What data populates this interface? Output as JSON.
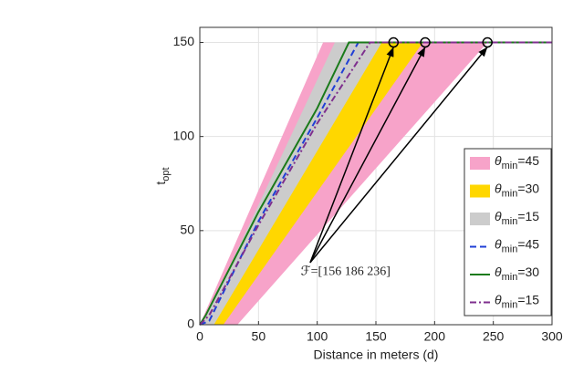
{
  "chart_data": {
    "type": "line",
    "xlabel": "Distance in meters (d)",
    "ylabel": "topt",
    "xlim": [
      0,
      300
    ],
    "ylim": [
      0,
      158
    ],
    "xticks": [
      0,
      50,
      100,
      150,
      200,
      250,
      300
    ],
    "yticks": [
      0,
      50,
      100,
      150
    ],
    "grid": true,
    "legend": "lower-right",
    "areas": [
      {
        "name": "θmin=45",
        "color": "#f7a3c9",
        "x": [
          0,
          105,
          245,
          32
        ],
        "y": [
          0,
          150,
          150,
          0
        ]
      },
      {
        "name": "θmin=30",
        "color": "#ffd700",
        "x": [
          5,
          120,
          190,
          20
        ],
        "y": [
          0,
          150,
          150,
          0
        ]
      },
      {
        "name": "θmin=15",
        "color": "#cccccc",
        "x": [
          2,
          115,
          155,
          12
        ],
        "y": [
          0,
          150,
          150,
          0
        ]
      }
    ],
    "series": [
      {
        "name": "θmin=45",
        "color": "#1f3fd6",
        "dash": "7,4",
        "x": [
          0,
          8,
          50,
          100,
          135,
          300
        ],
        "values": [
          0,
          2,
          55,
          110,
          150,
          150
        ]
      },
      {
        "name": "θmin=30",
        "color": "#1a7a1a",
        "dash": "none",
        "x": [
          0,
          5,
          50,
          100,
          127,
          300
        ],
        "values": [
          0,
          5,
          60,
          115,
          150,
          150
        ]
      },
      {
        "name": "θmin=15",
        "color": "#7e2f8e",
        "dash": "7,3,2,3",
        "x": [
          0,
          8,
          50,
          100,
          145,
          300
        ],
        "values": [
          0,
          5,
          53,
          107,
          150,
          150
        ]
      }
    ],
    "markers": {
      "x": [
        165,
        192,
        245
      ],
      "y": [
        150,
        150,
        150
      ]
    },
    "annotation": {
      "text": "ℱ=[156 186 236]",
      "x": 86,
      "y": 28,
      "arrow_x": 94,
      "arrow_y": 33
    }
  }
}
